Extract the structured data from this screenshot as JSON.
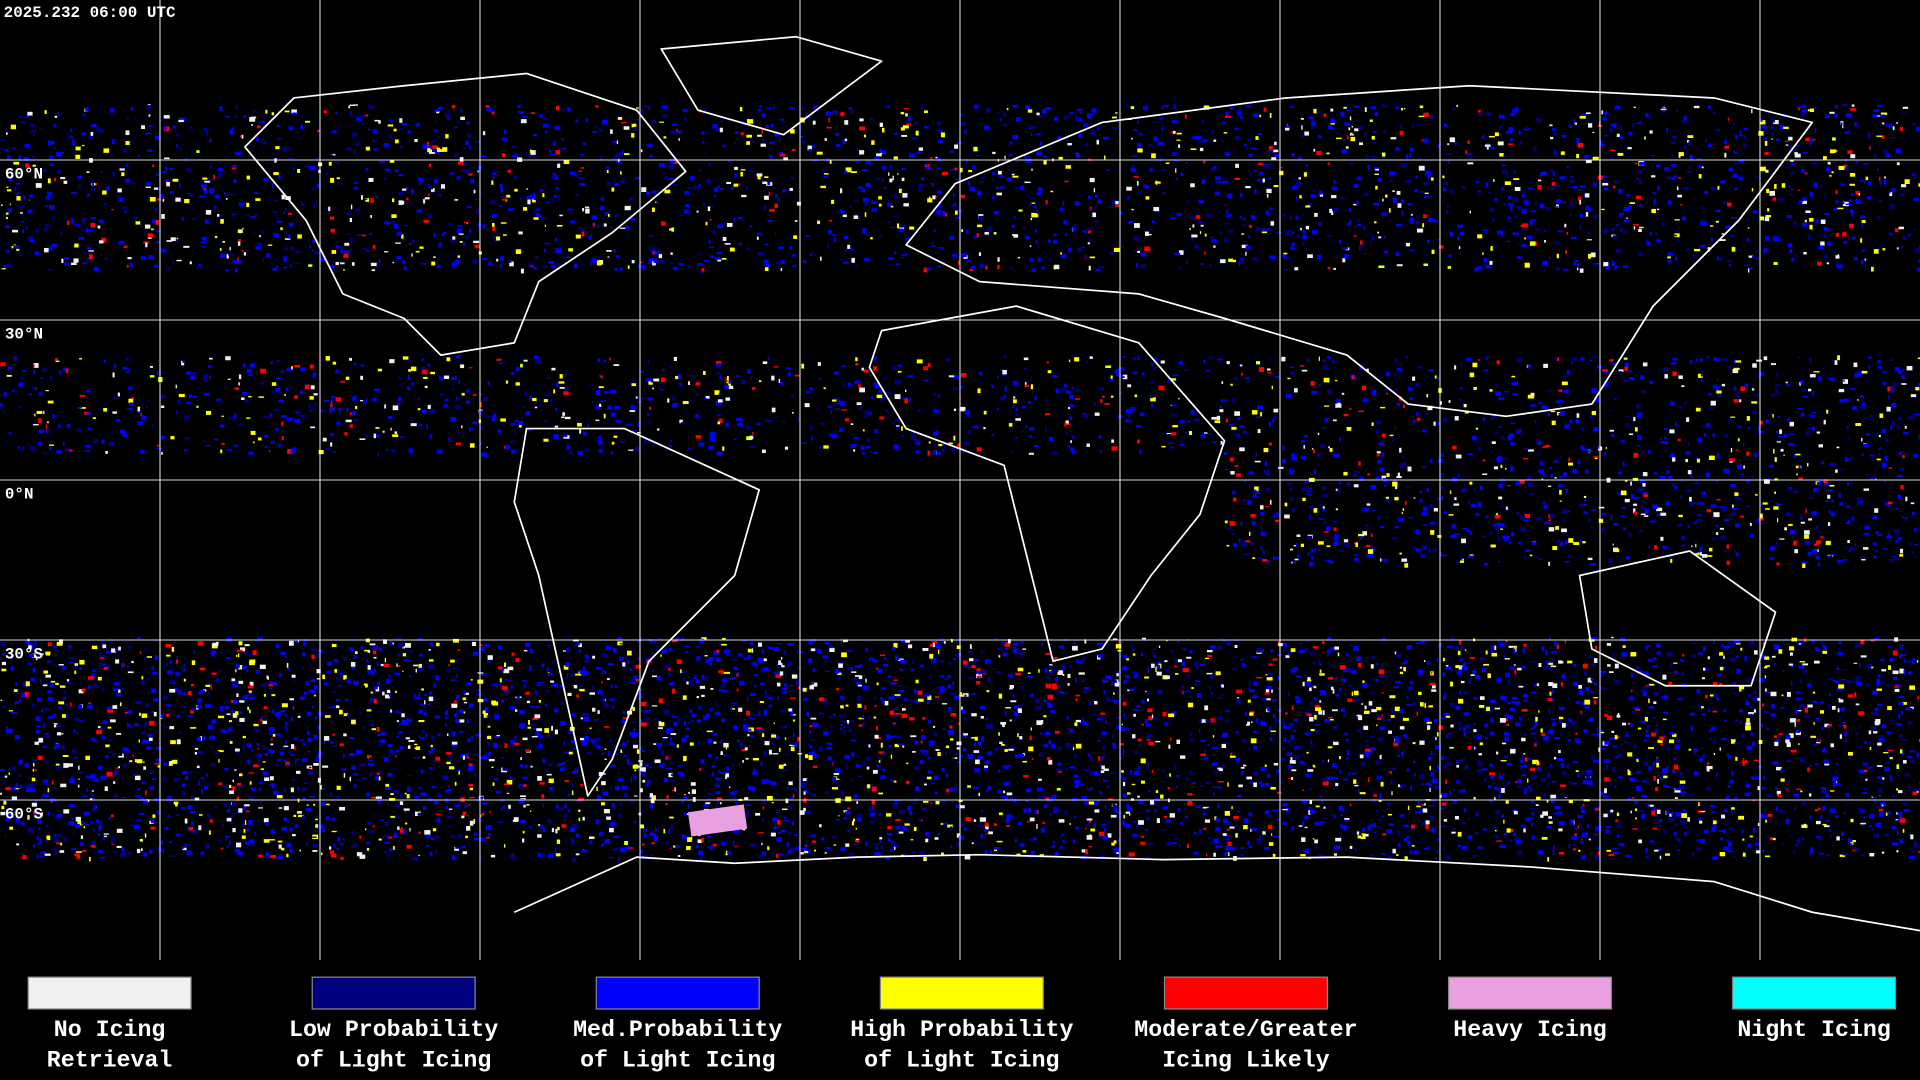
{
  "timestamp": "2025.232 06:00 UTC",
  "latitude_labels": [
    "60°N",
    "30°N",
    "0°N",
    "30°S",
    "60°S"
  ],
  "legend": [
    {
      "label_line1": "No Icing",
      "label_line2": "Retrieval",
      "color": "#f0f0f0"
    },
    {
      "label_line1": "Low Probability",
      "label_line2": "of Light Icing",
      "color": "#000080"
    },
    {
      "label_line1": "Med.Probability",
      "label_line2": "of Light Icing",
      "color": "#0000ff"
    },
    {
      "label_line1": "High Probability",
      "label_line2": "of Light Icing",
      "color": "#ffff00"
    },
    {
      "label_line1": "Moderate/Greater",
      "label_line2": "Icing Likely",
      "color": "#ff0000"
    },
    {
      "label_line1": "Heavy Icing",
      "label_line2": "",
      "color": "#e8a0e0"
    },
    {
      "label_line1": "Night Icing",
      "label_line2": "",
      "color": "#00ffff"
    }
  ]
}
